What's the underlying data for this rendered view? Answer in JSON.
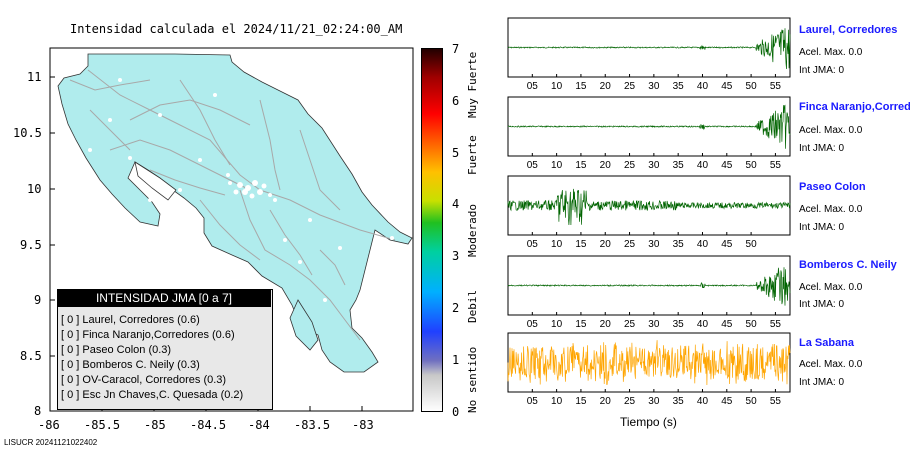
{
  "map": {
    "title": "Intensidad calculada el 2024/11/21_02:24:00_AM",
    "x_ticks": [
      "-86",
      "-85.5",
      "-85",
      "-84.5",
      "-84",
      "-83.5",
      "-83"
    ],
    "y_ticks": [
      "11",
      "10.5",
      "10",
      "9.5",
      "9",
      "8.5",
      "8"
    ],
    "land_color": "#b0eced",
    "road_color": "#a8a8a8"
  },
  "intensity_scale": {
    "levels": [
      "0",
      "1",
      "2",
      "3",
      "4",
      "5",
      "6",
      "7"
    ],
    "labels": [
      "No sentido",
      "Debil",
      "Moderado",
      "Fuerte",
      "Muy Fuerte"
    ]
  },
  "legend": {
    "header": "INTENSIDAD JMA [0 a 7]",
    "items": [
      "[ 0 ]  Laurel, Corredores (0.6)",
      "[ 0 ]  Finca Naranjo,Corredores (0.6)",
      "[ 0 ]  Paseo Colon (0.3)",
      "[ 0 ]  Bomberos C. Neily (0.3)",
      "[ 0 ]  OV-Caracol, Corredores (0.3)",
      "[ 0 ]  Esc Jn Chaves,C. Quesada (0.2)"
    ]
  },
  "waveforms": [
    {
      "station": "Laurel, Corredores",
      "accel": "Acel. Max. 0.0",
      "jma": "Int JMA: 0",
      "color": "#006400",
      "ticks": [
        "05",
        "10",
        "15",
        "20",
        "25",
        "30",
        "35",
        "40",
        "45",
        "50",
        "55"
      ],
      "burst": "end"
    },
    {
      "station": "Finca Naranjo,Corredores",
      "accel": "Acel. Max. 0.0",
      "jma": "Int JMA: 0",
      "color": "#006400",
      "ticks": [
        "05",
        "10",
        "15",
        "20",
        "25",
        "30",
        "35",
        "40",
        "45",
        "50",
        "55"
      ],
      "burst": "end"
    },
    {
      "station": "Paseo Colon",
      "accel": "Acel. Max. 0.0",
      "jma": "Int JMA: 0",
      "color": "#006400",
      "ticks": [
        "05",
        "10",
        "15",
        "20",
        "25",
        "30",
        "35",
        "40",
        "45",
        "50"
      ],
      "burst": "early"
    },
    {
      "station": "Bomberos C. Neily",
      "accel": "Acel. Max. 0.0",
      "jma": "Int JMA: 0",
      "color": "#006400",
      "ticks": [
        "05",
        "10",
        "15",
        "20",
        "25",
        "30",
        "35",
        "40",
        "45",
        "50",
        "55"
      ],
      "burst": "end"
    },
    {
      "station": "La Sabana",
      "accel": "Acel. Max. 0.0",
      "jma": "Int JMA: 0",
      "color": "#ffa500",
      "ticks": [
        "05",
        "10",
        "15",
        "20",
        "25",
        "30",
        "35",
        "40",
        "45",
        "50",
        "55"
      ],
      "burst": "full"
    }
  ],
  "waveform_xlabel": "Tiempo (s)",
  "footer": "LISUCR 20241121022402"
}
